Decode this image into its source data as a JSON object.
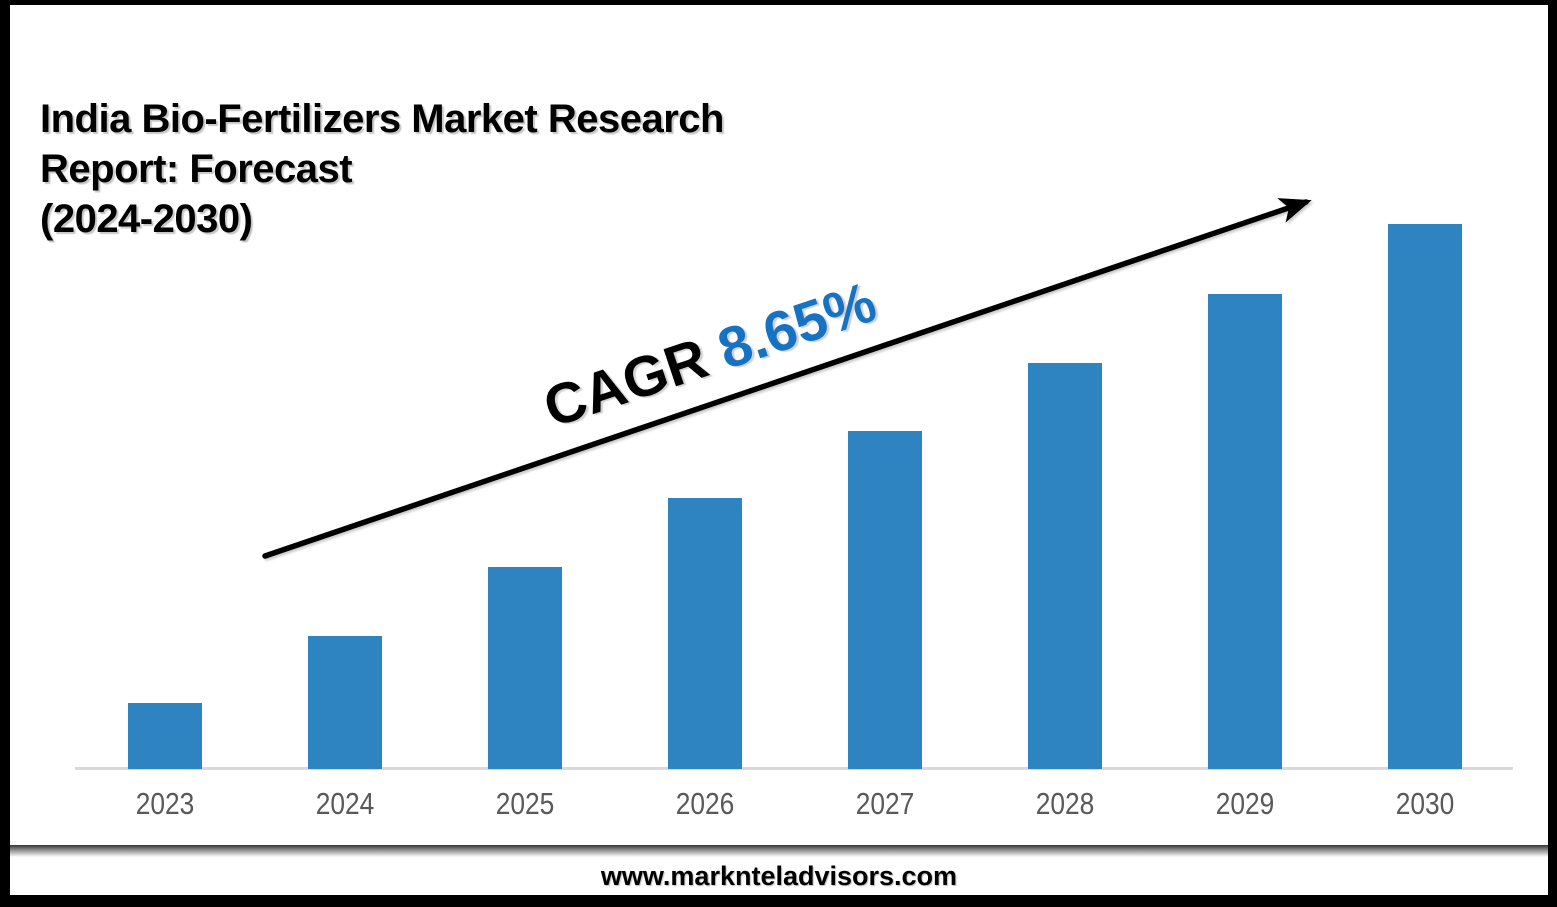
{
  "title": {
    "lines": [
      "India Bio-Fertilizers Market Research",
      "Report: Forecast",
      "(2024-2030)"
    ],
    "full_text": "India Bio-Fertilizers Market Research Report: Forecast (2024-2030)"
  },
  "cagr": {
    "label": "CAGR ",
    "value": "8.65%",
    "label_color": "#000000",
    "value_color": "#1673C4",
    "arrow_icon": "up-right-trend-arrow",
    "arrow_color": "#000000"
  },
  "chart_data": {
    "type": "bar",
    "title": "India Bio-Fertilizers Market Research Report: Forecast (2024-2030)",
    "categories": [
      "2023",
      "2024",
      "2025",
      "2026",
      "2027",
      "2028",
      "2029",
      "2030"
    ],
    "values": [
      66,
      133,
      202,
      271,
      338,
      406,
      475,
      545
    ],
    "units": "relative height (no y-axis values shown in image)",
    "xlabel": "",
    "ylabel": "",
    "ylim": [
      0,
      560
    ],
    "grid": false,
    "legend": false,
    "bar_color": "#2E83C1",
    "axis_line_color": "#D9D9D9",
    "tick_label_color": "#595959",
    "annotation": "CAGR 8.65%"
  },
  "footer": {
    "url": "www.marknteladvisors.com"
  }
}
